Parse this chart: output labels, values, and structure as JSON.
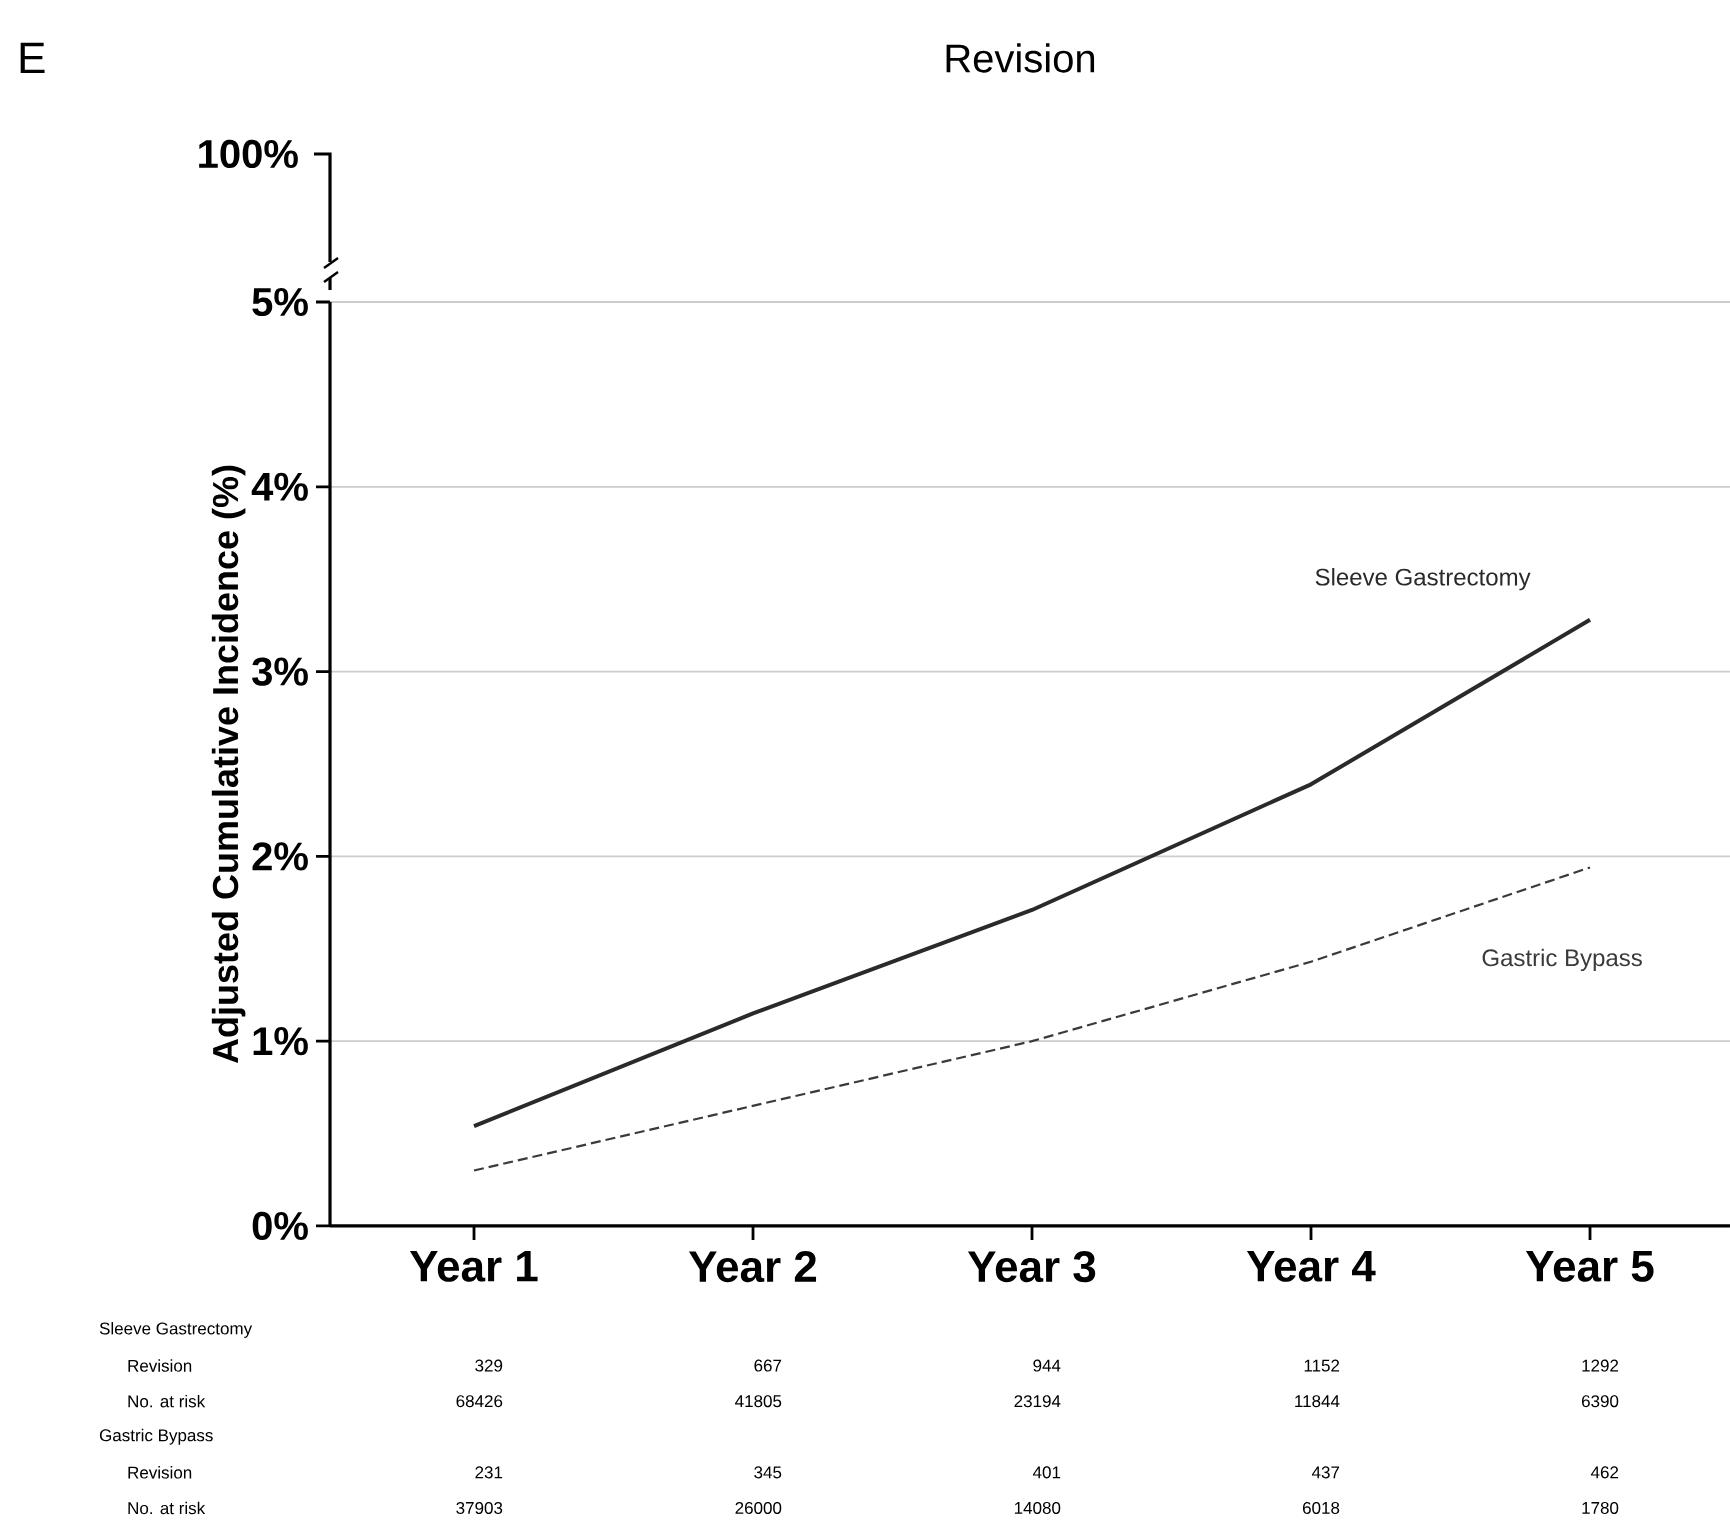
{
  "chart_data": {
    "type": "line",
    "title": "Revision",
    "ylabel": "Adjusted Cumulative Incidence (%)",
    "categories": [
      "Year 1",
      "Year 2",
      "Year 3",
      "Year 4",
      "Year 5"
    ],
    "series": [
      {
        "name": "Sleeve Gastrectomy",
        "color": "#2a2a2a",
        "line_style": "solid",
        "values": [
          0.54,
          1.15,
          1.71,
          2.39,
          3.28
        ]
      },
      {
        "name": "Gastric Bypass",
        "color": "#3a3a3a",
        "line_style": "dashed",
        "values": [
          0.3,
          0.65,
          1.0,
          1.43,
          1.94
        ]
      }
    ],
    "ylim": [
      0,
      5
    ],
    "yticks": [
      {
        "value": 0,
        "label": "0%"
      },
      {
        "value": 1,
        "label": "1%"
      },
      {
        "value": 2,
        "label": "2%"
      },
      {
        "value": 3,
        "label": "3%"
      },
      {
        "value": 4,
        "label": "4%"
      },
      {
        "value": 5,
        "label": "5%"
      }
    ],
    "grid": "y",
    "legend": false,
    "marker": "none",
    "annotations": [
      "E",
      "100%",
      "Sleeve Gastrectomy",
      "Revision",
      "329",
      "667",
      "944",
      "1152",
      "1292",
      "No. at risk",
      "68426",
      "41805",
      "23194",
      "11844",
      "6390",
      "Gastric Bypass",
      "Revision",
      "231",
      "345",
      "401",
      "437",
      "462",
      "No. at risk",
      "37903",
      "26000",
      "14080",
      "6018",
      "1780"
    ]
  }
}
